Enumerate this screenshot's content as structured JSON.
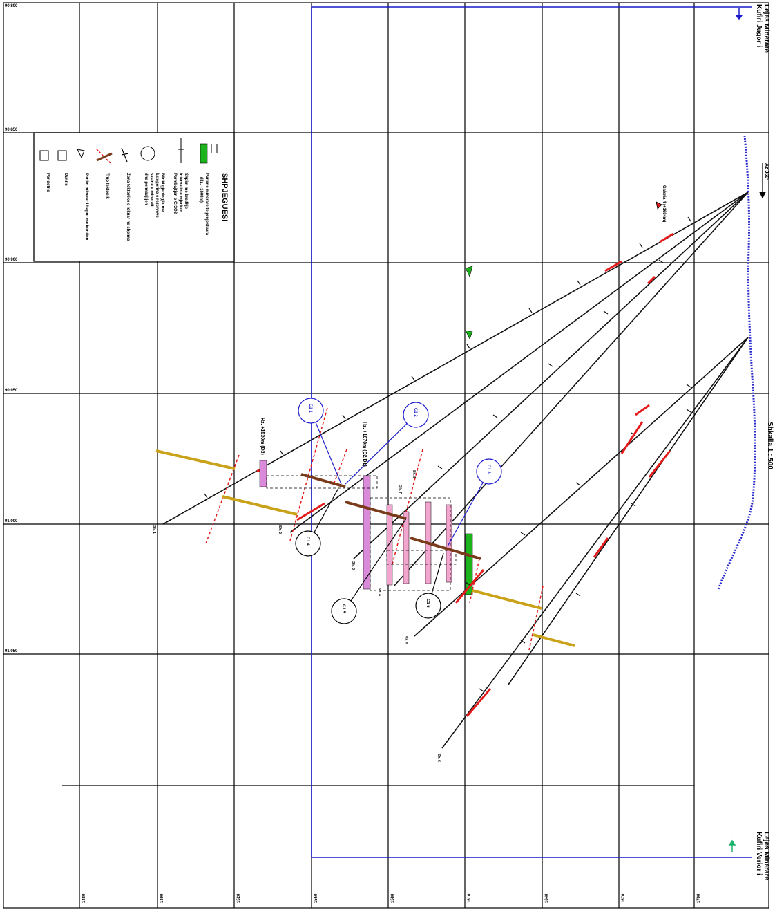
{
  "grid": {
    "northings": [
      "90 800",
      "90 850",
      "90 900",
      "90 950",
      "91 000",
      "91 050"
    ],
    "eastings": [
      "1480",
      "1490",
      "1520",
      "1550",
      "1580",
      "1610",
      "1640",
      "1670",
      "1700"
    ]
  },
  "boundary": {
    "north_label": "Kufiri Jugor i\nLejes Minerare",
    "south_label": "Kufiri Verior i\nLejes Minerare"
  },
  "scale": "Shkalla 1 : 500",
  "azimuth": "Az 360°",
  "galeria": "Galeria 4 (+1694m)",
  "horizons": [
    "Hz. +1530m (D3)",
    "Hz. +1670m (D2/D1)"
  ],
  "legend": {
    "title": "SHPJEGUESI",
    "items": [
      "Punime minerare te projektuara",
      "(Hz. +1600m)",
      "Shpim me bredhje",
      "Intervalin e mjeckur",
      "Permbajtjen e Cr2O3",
      "Blloki gjeologjik me",
      "kategorine e rezerveve,",
      "sasine e mineralit",
      "dhe permbajtjen",
      "Zona tektonike e lokuar ne shpime",
      "Trup tektonik",
      "Punim minerar i hapur me kuotion",
      "Dunite",
      "Peridotite"
    ]
  },
  "blocks": [
    "C1 1",
    "C1 2",
    "C1 3",
    "C1 4",
    "C1 5",
    "C1 6"
  ],
  "holes": [
    "Sh. 1",
    "Sh. 2",
    "Sh. 3",
    "Sh. 4",
    "Sh. 5",
    "Sh. 6",
    "Sh. 7",
    "Sh. 8"
  ],
  "colors": {
    "boundary": "#1a1acc",
    "drill": "#111111",
    "mineral": "#e51a1a",
    "tectonic": "#e51a1a",
    "dike": "#c9a21a",
    "works": "#1db31d",
    "block_fill": "#f2a6cf",
    "block_fill2": "#d98ad9",
    "fault": "#7a3b1a"
  }
}
